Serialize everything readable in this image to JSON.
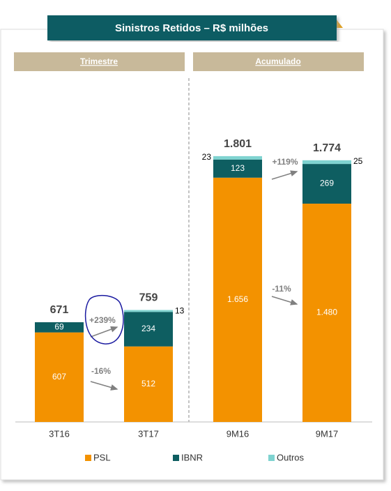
{
  "chart_data": {
    "type": "stacked_bar",
    "title": "Sinistros Retidos – R$ milhões",
    "panels": [
      "Trimestre",
      "Acumulado"
    ],
    "categories": [
      "3T16",
      "3T17",
      "9M16",
      "9M17"
    ],
    "series": [
      {
        "name": "PSL",
        "color": "#f39200",
        "values": [
          607,
          512,
          1656,
          1480
        ],
        "value_labels": [
          "607",
          "512",
          "1.656",
          "1.480"
        ]
      },
      {
        "name": "IBNR",
        "color": "#0e5e61",
        "values": [
          69,
          234,
          123,
          269
        ]
      },
      {
        "name": "Outros",
        "color": "#7fd3d0",
        "values": [
          null,
          13,
          23,
          25
        ]
      }
    ],
    "totals": {
      "values": [
        671,
        759,
        1801,
        1774
      ],
      "value_labels": [
        "671",
        "759",
        "1.801",
        "1.774"
      ]
    },
    "annotations": [
      "+239%",
      "-16%",
      "+119%",
      "-11%"
    ]
  }
}
